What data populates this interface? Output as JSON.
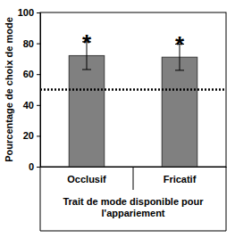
{
  "chart_data": {
    "type": "bar",
    "categories": [
      "Occlusif",
      "Fricatif"
    ],
    "values": [
      72,
      71
    ],
    "errors": [
      9,
      8.5
    ],
    "color": "#808080",
    "ylim": [
      0,
      100
    ],
    "yticks": [
      0,
      20,
      40,
      60,
      80,
      100
    ],
    "y_label": "Pourcentage de choix de mode",
    "x_label": "Trait de mode disponible pour l'appariement",
    "annotations": [
      "*",
      "*"
    ],
    "reference_line": {
      "value": 50,
      "line_style": "dotted"
    }
  }
}
